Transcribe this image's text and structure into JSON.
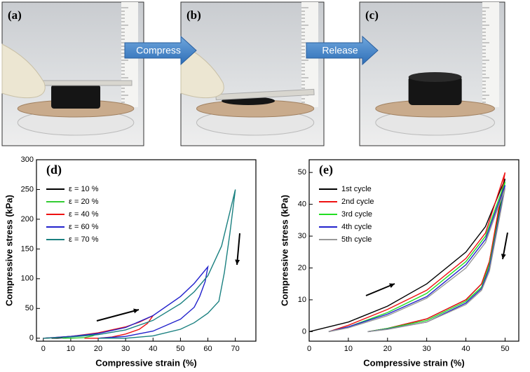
{
  "photos": {
    "labels": [
      "(a)",
      "(b)",
      "(c)"
    ],
    "arrows": [
      "Compress",
      "Release"
    ]
  },
  "chart_data": [
    {
      "type": "line",
      "panel_label": "(d)",
      "x_label": "Compressive strain (%)",
      "y_label": "Compressive stress (kPa)",
      "xlim": [
        -2.5,
        77.5
      ],
      "xticks": [
        0,
        10,
        20,
        30,
        40,
        50,
        60,
        70
      ],
      "ylim": [
        -5,
        300
      ],
      "yticks": [
        0,
        50,
        100,
        150,
        200,
        250,
        300
      ],
      "legend": "upper-left",
      "series": [
        {
          "name": "ε = 10 %",
          "color": "#000000",
          "x": [
            0,
            5,
            10,
            8,
            5,
            3
          ],
          "values": [
            0,
            1,
            3,
            1,
            0,
            0
          ]
        },
        {
          "name": "ε = 20 %",
          "color": "#33cc33",
          "x": [
            0,
            5,
            10,
            15,
            20,
            18,
            15,
            10,
            7
          ],
          "values": [
            0,
            1,
            3,
            5,
            8,
            4,
            1,
            0,
            0
          ]
        },
        {
          "name": "ε = 40 %",
          "color": "#ee1111",
          "x": [
            0,
            10,
            20,
            30,
            35,
            40,
            38,
            35,
            30,
            25,
            20,
            15
          ],
          "values": [
            0,
            3,
            9,
            19,
            27,
            38,
            25,
            15,
            7,
            2,
            0,
            0
          ]
        },
        {
          "name": "ε = 60 %",
          "color": "#2222cc",
          "x": [
            0,
            10,
            20,
            30,
            40,
            50,
            55,
            60,
            59,
            57,
            55,
            50,
            40,
            30,
            20
          ],
          "values": [
            0,
            3,
            8,
            18,
            38,
            70,
            92,
            120,
            95,
            70,
            52,
            32,
            12,
            3,
            0
          ]
        },
        {
          "name": "ε = 70 %",
          "color": "#1a8080",
          "x": [
            0,
            10,
            20,
            30,
            40,
            50,
            55,
            60,
            65,
            70,
            68,
            66,
            64,
            60,
            55,
            50,
            40,
            30,
            20
          ],
          "values": [
            0,
            2,
            6,
            14,
            30,
            58,
            78,
            105,
            155,
            250,
            175,
            110,
            62,
            42,
            26,
            15,
            4,
            0,
            0
          ]
        }
      ]
    },
    {
      "type": "line",
      "panel_label": "(e)",
      "x_label": "Compressive strain (%)",
      "y_label": "Compressive stress (kPa)",
      "xlim": [
        0,
        53.5
      ],
      "xticks": [
        0,
        10,
        20,
        30,
        40,
        50
      ],
      "ylim": [
        -3,
        54
      ],
      "yticks": [
        0,
        10,
        20,
        30,
        40,
        50
      ],
      "legend": "upper-left",
      "series": [
        {
          "name": "1st cycle",
          "color": "#000000",
          "x": [
            0,
            10,
            20,
            30,
            40,
            45,
            50,
            48,
            46,
            44,
            40,
            30,
            20,
            15
          ],
          "values": [
            0,
            3,
            8,
            15,
            25,
            33,
            48,
            35,
            22,
            15,
            10,
            4,
            1,
            0
          ]
        },
        {
          "name": "2nd cycle",
          "color": "#ee1111",
          "x": [
            5,
            10,
            20,
            30,
            40,
            45,
            50,
            48,
            46,
            44,
            40,
            30,
            20,
            15
          ],
          "values": [
            0,
            2,
            7,
            13,
            23,
            31,
            50,
            36,
            22,
            15,
            10,
            4,
            1,
            0
          ]
        },
        {
          "name": "3rd cycle",
          "color": "#22dd22",
          "x": [
            5,
            10,
            20,
            30,
            40,
            45,
            50,
            48,
            46,
            44,
            40,
            30,
            20,
            15
          ],
          "values": [
            0,
            1.5,
            6,
            12,
            22,
            30,
            47,
            34,
            21,
            14,
            9.5,
            3.5,
            1,
            0
          ]
        },
        {
          "name": "4th cycle",
          "color": "#2222cc",
          "x": [
            5,
            10,
            20,
            30,
            40,
            45,
            50,
            48,
            46,
            44,
            40,
            30,
            20,
            15
          ],
          "values": [
            0,
            1.5,
            5.5,
            11,
            21,
            29,
            46,
            33,
            20,
            13.5,
            9,
            3,
            0.8,
            0
          ]
        },
        {
          "name": "5th cycle",
          "color": "#999999",
          "x": [
            5,
            10,
            20,
            30,
            40,
            45,
            50,
            48,
            46,
            44,
            40,
            30,
            20,
            15
          ],
          "values": [
            0,
            1.2,
            5,
            10.5,
            20,
            28,
            45,
            32,
            19,
            13,
            8.5,
            3,
            0.7,
            0
          ]
        }
      ]
    }
  ]
}
